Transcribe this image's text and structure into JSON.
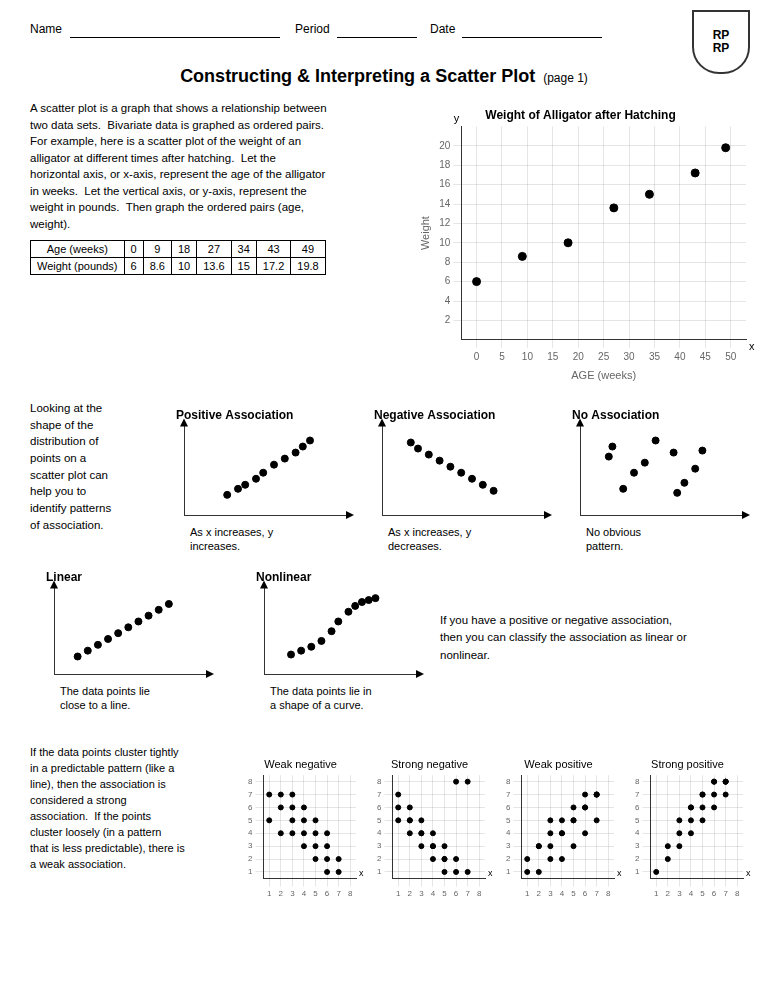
{
  "title": "Constructing & Interpreting a Scatter Plot",
  "subtitle": "(page 1)",
  "annotations": [
    "Name",
    "Period",
    "Date",
    "RP\nRP",
    "A scatter plot is a graph that shows a relationship between\ntwo data sets.  Bivariate data is graphed as ordered pairs.\nFor example, here is a scatter plot of the weight of an\nalligator at different times after hatching.  Let the\nhorizontal axis, or x-axis, represent the age of the alligator\nin weeks.  Let the vertical axis, or y-axis, represent the\nweight in pounds.  Then graph the ordered pairs (age,\nweight).",
    "Age (weeks)",
    "Weight (pounds)",
    "Looking at the\nshape of the\ndistribution of\npoints on a\nscatter plot can\nhelp you to\nidentify patterns\nof association.",
    "If you have a positive or negative association,\nthen you can classify the association as linear or\nnonlinear.",
    "If the data points cluster tightly\nin a predictable pattern (like a\nline), then the association is\nconsidered a strong\nassociation.  If the points\ncluster loosely (in a pattern\nthat is less predictable), there is\na weak association."
  ],
  "chart_data": [
    {
      "type": "scatter",
      "title": "Weight of Alligator after Hatching",
      "x_label": "AGE (weeks)",
      "y_label": "Weight",
      "x": [
        0,
        9,
        18,
        27,
        34,
        43,
        49
      ],
      "values": [
        6,
        8.6,
        10,
        13.6,
        15,
        17.2,
        19.8
      ],
      "color": "black",
      "xlim": [
        -3,
        53
      ],
      "ylim": [
        0,
        22
      ],
      "xticks": [
        0,
        5,
        10,
        15,
        20,
        25,
        30,
        35,
        40,
        45,
        50
      ],
      "yticks": [
        2,
        4,
        6,
        8,
        10,
        12,
        14,
        16,
        18,
        20
      ],
      "grid": true,
      "annotations": [
        "x",
        "y"
      ]
    },
    {
      "type": "scatter",
      "title": "Positive Association",
      "x": [
        1.2,
        1.5,
        1.7,
        2.0,
        2.2,
        2.5,
        2.8,
        3.1,
        3.3,
        3.5
      ],
      "values": [
        0.8,
        1.1,
        1.3,
        1.6,
        1.9,
        2.3,
        2.6,
        2.9,
        3.2,
        3.5
      ],
      "color": "black",
      "xlim": [
        0,
        4.5
      ],
      "ylim": [
        -0.2,
        4.2
      ],
      "grid": false,
      "tick_labels": false,
      "annotations": [
        "As x increases, y\nincreases."
      ]
    },
    {
      "type": "scatter",
      "title": "Negative Association",
      "x": [
        0.8,
        1.0,
        1.3,
        1.6,
        1.9,
        2.2,
        2.5,
        2.8,
        3.1
      ],
      "values": [
        3.4,
        3.1,
        2.8,
        2.5,
        2.2,
        1.9,
        1.6,
        1.3,
        1.0
      ],
      "color": "black",
      "xlim": [
        0,
        4.5
      ],
      "ylim": [
        -0.2,
        4.2
      ],
      "grid": false,
      "tick_labels": false,
      "annotations": [
        "As x increases, y\ndecreases."
      ]
    },
    {
      "type": "scatter",
      "title": "No Association",
      "x": [
        0.9,
        1.5,
        2.1,
        2.9,
        1.2,
        2.6,
        1.8,
        3.2,
        0.8,
        2.7,
        3.4
      ],
      "values": [
        3.2,
        1.9,
        3.5,
        1.4,
        1.1,
        2.9,
        2.4,
        2.1,
        2.7,
        0.9,
        3.0
      ],
      "color": "black",
      "xlim": [
        0,
        4.5
      ],
      "ylim": [
        -0.2,
        4.2
      ],
      "grid": false,
      "tick_labels": false,
      "annotations": [
        "No obvious\npattern."
      ]
    },
    {
      "type": "scatter",
      "title": "Linear",
      "x": [
        0.7,
        1.0,
        1.3,
        1.6,
        1.9,
        2.2,
        2.5,
        2.8,
        3.1,
        3.4
      ],
      "values": [
        0.7,
        1.0,
        1.3,
        1.6,
        1.9,
        2.2,
        2.5,
        2.8,
        3.1,
        3.4
      ],
      "color": "black",
      "xlim": [
        0,
        4.5
      ],
      "ylim": [
        -0.2,
        4.2
      ],
      "grid": false,
      "tick_labels": false,
      "annotations": [
        "The data points lie\nclose to a line."
      ]
    },
    {
      "type": "scatter",
      "title": "Nonlinear",
      "x": [
        0.8,
        1.1,
        1.4,
        1.7,
        2.0,
        2.2,
        2.5,
        2.7,
        2.9,
        3.1,
        3.3
      ],
      "values": [
        0.8,
        1.0,
        1.2,
        1.5,
        2.0,
        2.5,
        3.0,
        3.3,
        3.5,
        3.6,
        3.7
      ],
      "color": "black",
      "xlim": [
        0,
        4.5
      ],
      "ylim": [
        -0.2,
        4.2
      ],
      "grid": false,
      "tick_labels": false,
      "annotations": [
        "The data points lie in\na shape of a curve."
      ]
    },
    {
      "type": "scatter",
      "title": "Weak negative",
      "x": [
        1,
        2,
        3,
        4,
        5,
        6,
        7,
        1,
        2,
        3,
        4,
        5,
        6,
        2,
        3,
        4,
        5,
        6,
        7,
        3,
        4,
        5,
        6
      ],
      "values": [
        7,
        7,
        6,
        5,
        4,
        3,
        2,
        5,
        4,
        4,
        3,
        2,
        1,
        6,
        5,
        4,
        3,
        2,
        1,
        7,
        6,
        5,
        4
      ],
      "color": "black",
      "xlim": [
        0.5,
        8.5
      ],
      "ylim": [
        0.5,
        8.5
      ],
      "xticks": [
        1,
        2,
        3,
        4,
        5,
        6,
        7,
        8
      ],
      "yticks": [
        1,
        2,
        3,
        4,
        5,
        6,
        7,
        8
      ],
      "grid": true,
      "annotations": [
        "x"
      ]
    },
    {
      "type": "scatter",
      "title": "Strong negative",
      "x": [
        1,
        2,
        3,
        4,
        5,
        6,
        7,
        1,
        2,
        3,
        4,
        5,
        6,
        7,
        1,
        2,
        3,
        4,
        5,
        6,
        2,
        3,
        4,
        5
      ],
      "values": [
        7,
        6,
        5,
        4,
        3,
        2,
        1,
        6,
        5,
        4,
        3,
        2,
        1,
        8,
        5,
        4,
        3,
        2,
        1,
        8,
        5,
        4,
        3,
        2
      ],
      "color": "black",
      "xlim": [
        0.5,
        8.5
      ],
      "ylim": [
        0.5,
        8.5
      ],
      "xticks": [
        1,
        2,
        3,
        4,
        5,
        6,
        7,
        8
      ],
      "yticks": [
        1,
        2,
        3,
        4,
        5,
        6,
        7,
        8
      ],
      "grid": true,
      "annotations": [
        "x"
      ]
    },
    {
      "type": "scatter",
      "title": "Weak positive",
      "x": [
        1,
        2,
        3,
        4,
        5,
        6,
        7,
        1,
        2,
        3,
        4,
        5,
        6,
        7,
        2,
        3,
        4,
        5,
        6,
        7,
        3,
        4,
        5,
        6,
        7
      ],
      "values": [
        1,
        1,
        2,
        2,
        3,
        4,
        5,
        2,
        3,
        3,
        4,
        5,
        6,
        7,
        3,
        4,
        4,
        5,
        6,
        7,
        5,
        5,
        6,
        7,
        7
      ],
      "color": "black",
      "xlim": [
        0.5,
        8.5
      ],
      "ylim": [
        0.5,
        8.5
      ],
      "xticks": [
        1,
        2,
        3,
        4,
        5,
        6,
        7,
        8
      ],
      "yticks": [
        1,
        2,
        3,
        4,
        5,
        6,
        7,
        8
      ],
      "grid": true,
      "annotations": [
        "x"
      ]
    },
    {
      "type": "scatter",
      "title": "Strong positive",
      "x": [
        1,
        2,
        3,
        4,
        5,
        6,
        7,
        2,
        3,
        4,
        5,
        6,
        7,
        3,
        4,
        5,
        6,
        7,
        4,
        5,
        6,
        7
      ],
      "values": [
        1,
        2,
        3,
        4,
        5,
        6,
        7,
        3,
        4,
        5,
        6,
        7,
        8,
        5,
        6,
        7,
        8,
        8,
        6,
        7,
        8,
        8
      ],
      "color": "black",
      "xlim": [
        0.5,
        8.5
      ],
      "ylim": [
        0.5,
        8.5
      ],
      "xticks": [
        1,
        2,
        3,
        4,
        5,
        6,
        7,
        8
      ],
      "yticks": [
        1,
        2,
        3,
        4,
        5,
        6,
        7,
        8
      ],
      "grid": true,
      "annotations": [
        "x"
      ]
    }
  ]
}
